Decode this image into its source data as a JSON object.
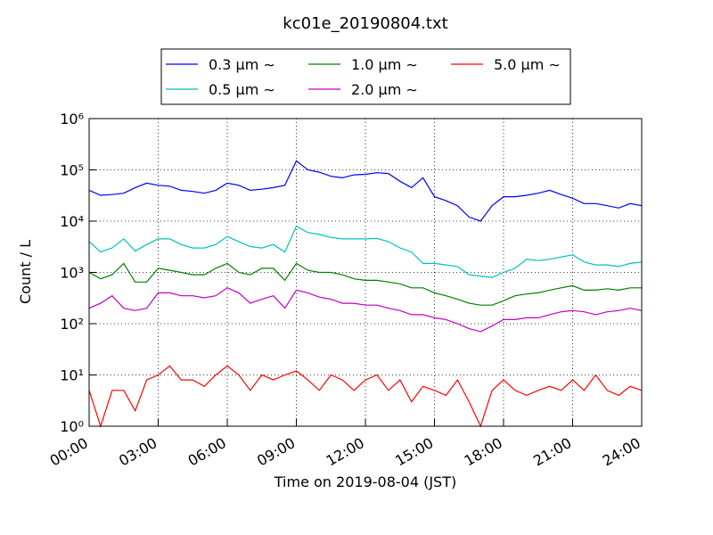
{
  "chart_data": {
    "type": "line",
    "title": "kc01e_20190804.txt",
    "x_label": "Time on 2019-08-04 (JST)",
    "y_label": "Count / L",
    "log_y": true,
    "grid": true,
    "legend": "top",
    "xlim": [
      0,
      24
    ],
    "ylim": [
      1,
      1000000
    ],
    "xticks": [
      {
        "value": 0,
        "label": "00:00"
      },
      {
        "value": 3,
        "label": "03:00"
      },
      {
        "value": 6,
        "label": "06:00"
      },
      {
        "value": 9,
        "label": "09:00"
      },
      {
        "value": 12,
        "label": "12:00"
      },
      {
        "value": 15,
        "label": "15:00"
      },
      {
        "value": 18,
        "label": "18:00"
      },
      {
        "value": 21,
        "label": "21:00"
      },
      {
        "value": 24,
        "label": "24:00"
      }
    ],
    "yticks": [
      {
        "value": 1,
        "label": "10⁰"
      },
      {
        "value": 10,
        "label": "10¹"
      },
      {
        "value": 100,
        "label": "10²"
      },
      {
        "value": 1000,
        "label": "10³"
      },
      {
        "value": 10000,
        "label": "10⁴"
      },
      {
        "value": 100000,
        "label": "10⁵"
      },
      {
        "value": 1000000,
        "label": "10⁶"
      }
    ],
    "x": [
      0,
      0.5,
      1,
      1.5,
      2,
      2.5,
      3,
      3.5,
      4,
      4.5,
      5,
      5.5,
      6,
      6.5,
      7,
      7.5,
      8,
      8.5,
      9,
      9.5,
      10,
      10.5,
      11,
      11.5,
      12,
      12.5,
      13,
      13.5,
      14,
      14.5,
      15,
      15.5,
      16,
      16.5,
      17,
      17.5,
      18,
      18.5,
      19,
      19.5,
      20,
      20.5,
      21,
      21.5,
      22,
      22.5,
      23,
      23.5,
      24
    ],
    "series": [
      {
        "name": "0.3 μm ∼",
        "color": "#0000ff",
        "values": [
          40000,
          32000,
          33000,
          35000,
          45000,
          55000,
          50000,
          48000,
          40000,
          38000,
          35000,
          40000,
          55000,
          50000,
          40000,
          42000,
          45000,
          50000,
          150000,
          100000,
          90000,
          75000,
          70000,
          80000,
          82000,
          88000,
          85000,
          60000,
          45000,
          70000,
          30000,
          25000,
          20000,
          12000,
          10000,
          20000,
          30000,
          30000,
          32000,
          35000,
          40000,
          33000,
          28000,
          22000,
          22000,
          20000,
          18000,
          22000,
          20000
        ]
      },
      {
        "name": "0.5 μm ∼",
        "color": "#00bfbf",
        "values": [
          4000,
          2500,
          3000,
          4500,
          2600,
          3500,
          4500,
          4500,
          3500,
          3000,
          3000,
          3500,
          5000,
          4000,
          3200,
          3000,
          3500,
          2500,
          8000,
          6000,
          5500,
          4800,
          4500,
          4500,
          4500,
          4600,
          4000,
          3000,
          2500,
          1500,
          1500,
          1400,
          1300,
          900,
          850,
          800,
          1000,
          1200,
          1800,
          1700,
          1800,
          2000,
          2200,
          1600,
          1400,
          1400,
          1300,
          1500,
          1600
        ]
      },
      {
        "name": "1.0 μm ∼",
        "color": "#008000",
        "values": [
          1000,
          750,
          900,
          1500,
          650,
          650,
          1200,
          1100,
          1000,
          900,
          900,
          1200,
          1500,
          1000,
          900,
          1200,
          1200,
          700,
          1500,
          1100,
          1000,
          1000,
          900,
          750,
          700,
          700,
          650,
          600,
          500,
          500,
          400,
          350,
          300,
          250,
          230,
          230,
          280,
          350,
          380,
          400,
          450,
          500,
          550,
          450,
          450,
          480,
          450,
          500,
          500
        ]
      },
      {
        "name": "2.0 μm ∼",
        "color": "#bf00bf",
        "values": [
          200,
          250,
          350,
          200,
          180,
          200,
          400,
          400,
          350,
          350,
          320,
          350,
          500,
          400,
          250,
          300,
          350,
          200,
          450,
          400,
          330,
          300,
          250,
          250,
          230,
          230,
          200,
          180,
          150,
          150,
          130,
          120,
          100,
          80,
          70,
          90,
          120,
          120,
          130,
          130,
          150,
          170,
          180,
          170,
          150,
          170,
          180,
          200,
          180
        ]
      },
      {
        "name": "5.0 μm ∼",
        "color": "#ff0000",
        "values": [
          5,
          1,
          5,
          5,
          2,
          8,
          10,
          15,
          8,
          8,
          6,
          10,
          15,
          10,
          5,
          10,
          8,
          10,
          12,
          8,
          5,
          10,
          8,
          5,
          8,
          10,
          5,
          8,
          3,
          6,
          5,
          4,
          8,
          3,
          1,
          5,
          8,
          5,
          4,
          5,
          6,
          5,
          8,
          5,
          10,
          5,
          4,
          6,
          5
        ]
      }
    ]
  }
}
